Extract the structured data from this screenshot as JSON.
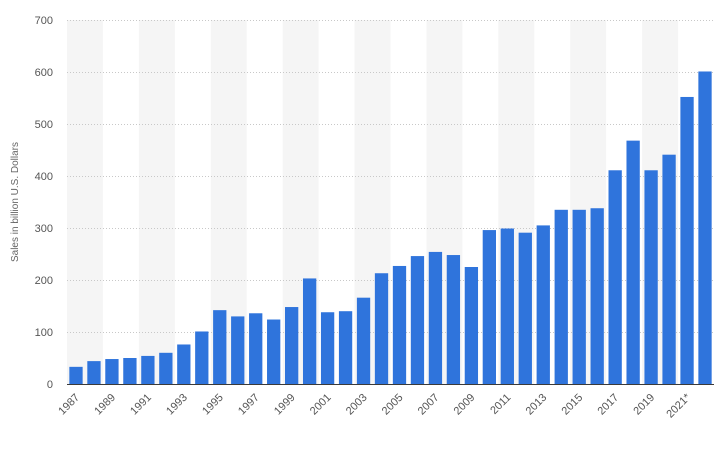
{
  "chart_data": {
    "type": "bar",
    "title": "",
    "xlabel": "",
    "ylabel": "Sales in billion U.S. Dollars",
    "ylim": [
      0,
      700
    ],
    "yticks": [
      0,
      100,
      200,
      300,
      400,
      500,
      600,
      700
    ],
    "grid": true,
    "legend": "none",
    "categories": [
      "1987",
      "1988",
      "1989",
      "1990",
      "1991",
      "1992",
      "1993",
      "1994",
      "1995",
      "1996",
      "1997",
      "1998",
      "1999",
      "2000",
      "2001",
      "2002",
      "2003",
      "2004",
      "2005",
      "2006",
      "2007",
      "2008",
      "2009",
      "2010",
      "2011",
      "2012",
      "2013",
      "2014",
      "2015",
      "2016",
      "2017",
      "2018",
      "2019",
      "2020",
      "2021*",
      "2022*"
    ],
    "x_tick_labels": [
      "1987",
      "1989",
      "1991",
      "1993",
      "1995",
      "1997",
      "1999",
      "2001",
      "2003",
      "2005",
      "2007",
      "2009",
      "2011",
      "2013",
      "2015",
      "2017",
      "2019",
      "2021*"
    ],
    "values": [
      33,
      44,
      48,
      50,
      54,
      60,
      76,
      101,
      142,
      130,
      136,
      124,
      148,
      203,
      138,
      140,
      166,
      213,
      227,
      246,
      254,
      248,
      225,
      296,
      299,
      291,
      305,
      335,
      335,
      338,
      411,
      468,
      411,
      441,
      552,
      601
    ],
    "colors": {
      "bar": "#2f74dc",
      "grid": "#c8c8c8",
      "band": "#f5f5f5",
      "axis": "#3a3a3a",
      "text": "#555555"
    }
  }
}
